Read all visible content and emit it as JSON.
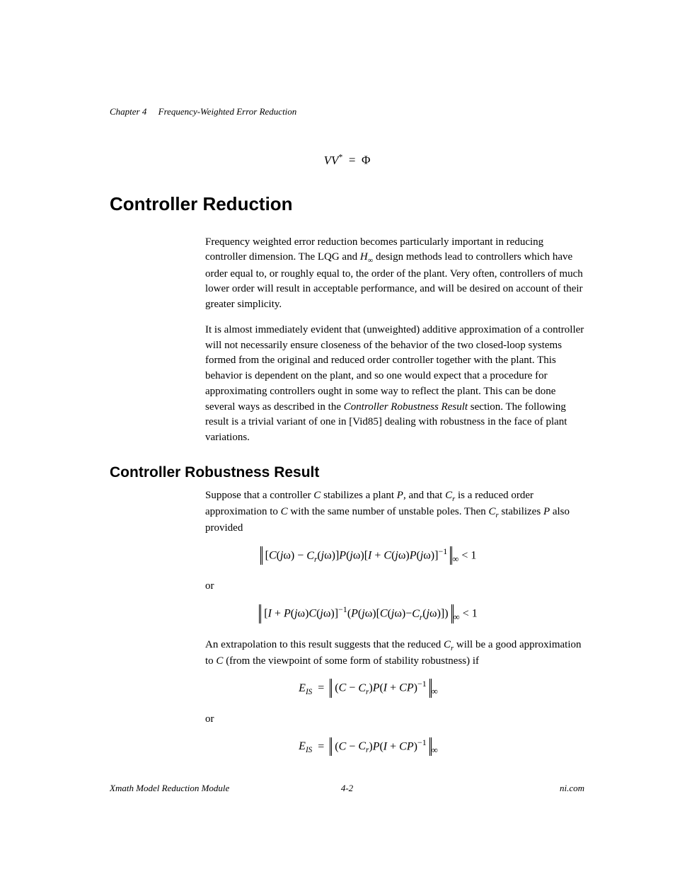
{
  "header": {
    "chapter": "Chapter 4",
    "title": "Frequency-Weighted Error Reduction"
  },
  "eq_vv": "VV*  =  Φ",
  "sections": {
    "controller_reduction": {
      "heading": "Controller Reduction",
      "p1_pre": "Frequency weighted error reduction becomes particularly important in reducing controller dimension. The LQG and ",
      "p1_h": "H",
      "p1_hinf": "∞",
      "p1_post": " design methods lead to controllers which have order equal to, or roughly equal to, the order of the plant. Very often, controllers of much lower order will result in acceptable performance, and will be desired on account of their greater simplicity.",
      "p2": "It is almost immediately evident that (unweighted) additive approximation of a controller will not necessarily ensure closeness of the behavior of the two closed-loop systems formed from the original and reduced order controller together with the plant. This behavior is dependent on the plant, and so one would expect that a procedure for approximating controllers ought in some way to reflect the plant. This can be done several ways as described in the ",
      "p2_link": "Controller Robustness Result",
      "p2_end": " section. The following result is a trivial variant of one in [Vid85] dealing with robustness in the face of plant variations."
    },
    "robustness": {
      "heading": "Controller Robustness Result",
      "p1": "Suppose that a controller C stabilizes a plant P, and that Cr is a reduced order approximation to C with the same number of unstable poles. Then Cr stabilizes P also provided",
      "eq1_inner": "[C(jω) − Cr(jω)]P(jω)[I + C(jω)P(jω)]",
      "eq1_sup": "−1",
      "eq1_tail": " < 1",
      "or": "or",
      "eq2_inner": "[I + P(jω)C(jω)]−1(P(jω)[C(jω)−Cr(jω)])",
      "eq2_tail": " < 1",
      "p2": "An extrapolation to this result suggests that the reduced Cr will be a good approximation to C (from the viewpoint of some form of stability robustness) if",
      "eis": "EIS",
      "eq3_inner": "(C − Cr)P(I + CP)",
      "eq3_sup": "−1",
      "or2": "or",
      "eq4_inner": "(C − Cr)P(I + CP)",
      "eq4_sup": "−1"
    }
  },
  "footer": {
    "left": "Xmath Model Reduction Module",
    "center": "4-2",
    "right": "ni.com"
  },
  "colors": {
    "text": "#000000",
    "background": "#ffffff"
  }
}
